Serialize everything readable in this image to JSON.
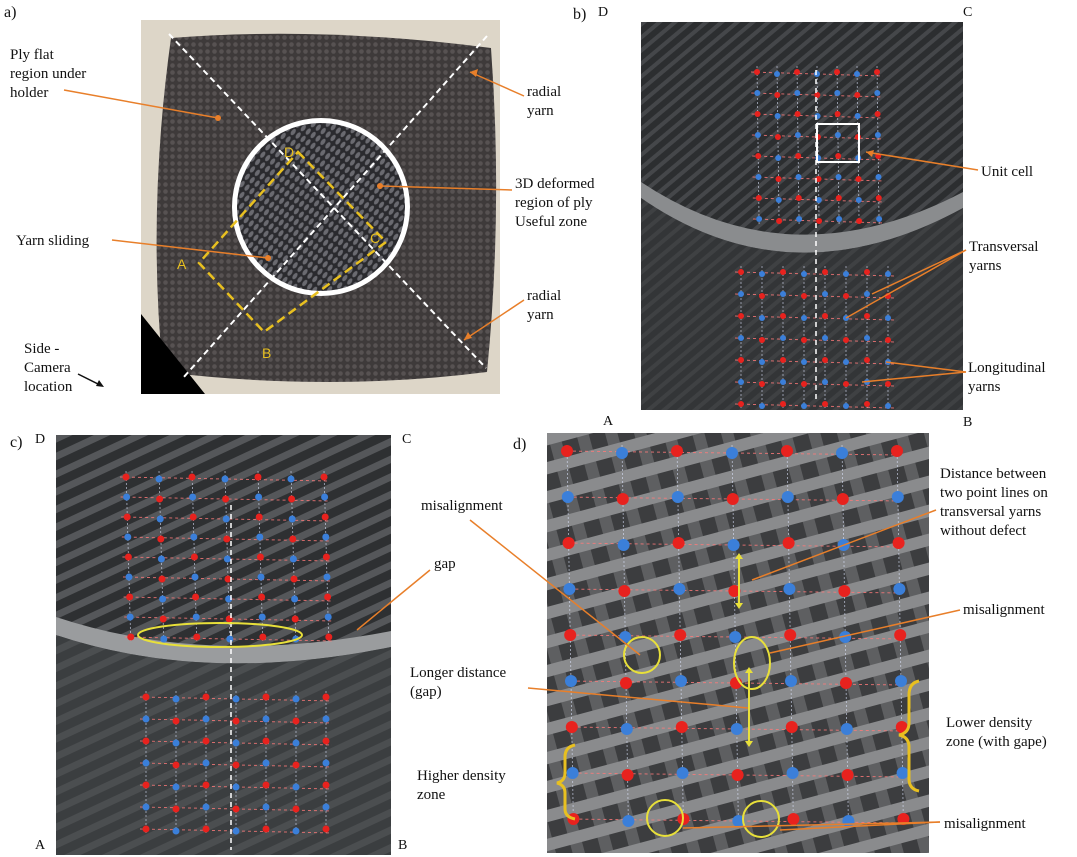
{
  "panels": {
    "a": {
      "label": "a)",
      "annotations": {
        "ply_flat": "Ply flat\nregion under\nholder",
        "radial_top": "radial\nyarn",
        "deformed": "3D deformed\nregion of ply\nUseful zone",
        "yarn_sliding": "Yarn sliding",
        "radial_bottom": "radial\nyarn",
        "side_camera": "Side -\nCamera\nlocation"
      },
      "corners": {
        "A": "A",
        "B": "B",
        "C": "C",
        "D": "D"
      }
    },
    "b": {
      "label": "b)",
      "corners": {
        "A": "A",
        "B": "B",
        "C": "C",
        "D": "D"
      },
      "annotations": {
        "unit_cell": "Unit cell",
        "transversal": "Transversal\nyarns",
        "longitudinal": "Longitudinal\nyarns"
      }
    },
    "c": {
      "label": "c)",
      "corners": {
        "A": "A",
        "B": "B",
        "C": "C",
        "D": "D"
      },
      "annotations": {
        "gap": "gap"
      }
    },
    "d": {
      "label": "d)",
      "annotations": {
        "distance": "Distance between\ntwo point lines on\ntransversal yarns\nwithout defect",
        "misalignment_left": "misalignment",
        "misalignment_right": "misalignment",
        "longer_distance": "Longer distance\n(gap)",
        "lower_density": "Lower density\nzone (with gape)",
        "higher_density": "Higher density\nzone",
        "misalignment_bottom": "misalignment"
      }
    }
  },
  "colors": {
    "annotation_line": "#e87f2a",
    "yellow": "#e8c020",
    "red_marker": "#e8221e",
    "blue_marker": "#3b7fd9"
  }
}
